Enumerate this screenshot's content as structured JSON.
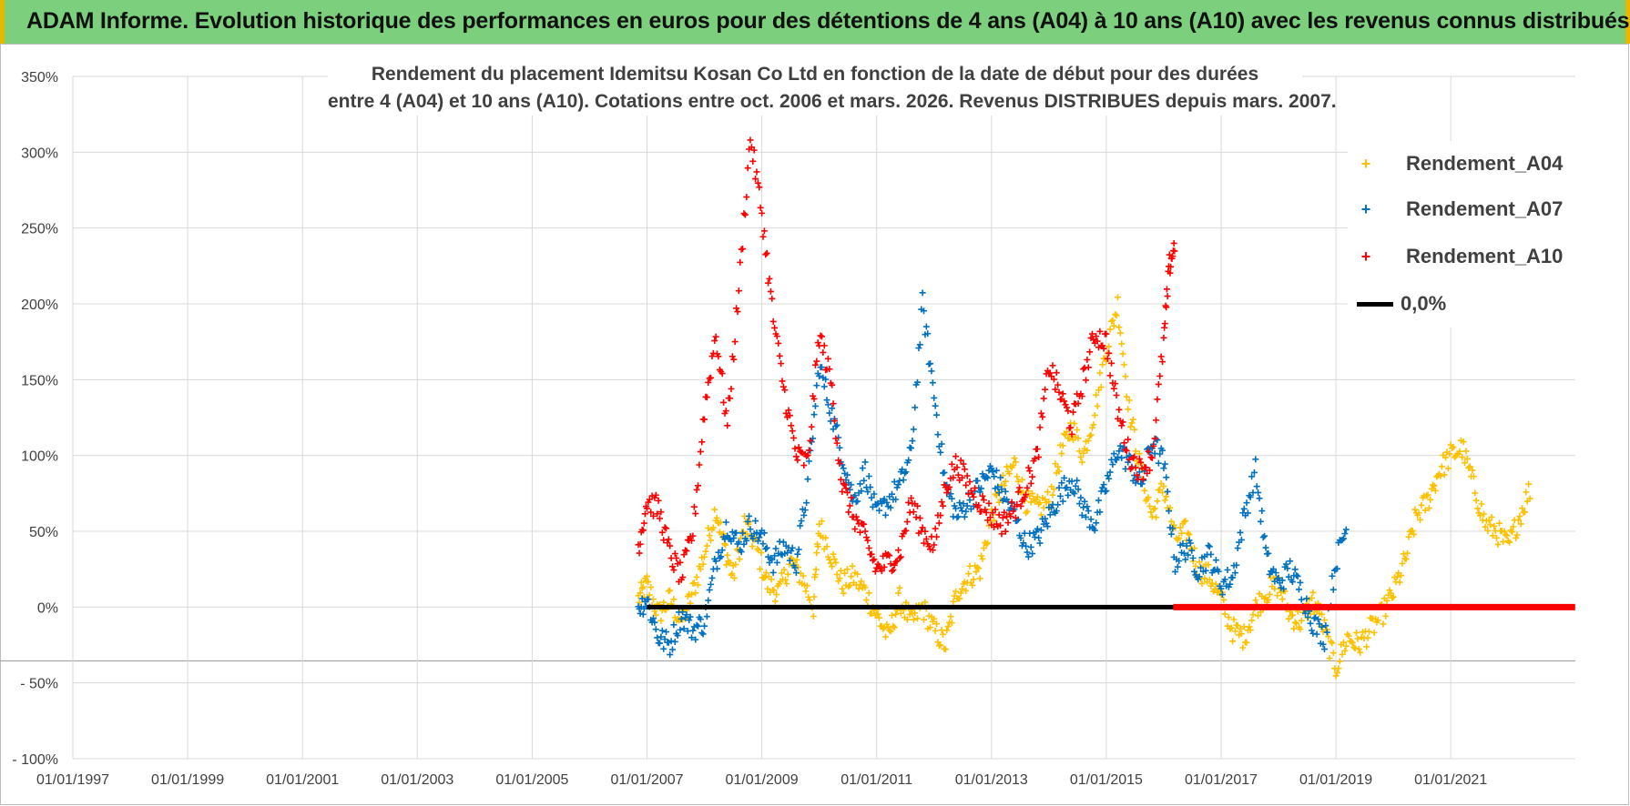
{
  "banner": {
    "title": "ADAM Informe. Evolution historique des performances en euros pour des détentions de 4 ans (A04) à 10 ans (A10) avec les revenus connus distribués"
  },
  "colors": {
    "banner_bg": "#7ccf7c",
    "banner_border": "#e6b800",
    "A04": "#ffc000",
    "A07": "#0070c0",
    "A10": "#ff0000",
    "zero_line": "#000000"
  },
  "chart_data": {
    "type": "scatter",
    "title_line1": "Rendement du placement Idemitsu Kosan Co Ltd en fonction de la date de début pour des durées",
    "title_line2": "entre 4 (A04) et 10 ans (A10).  Cotations entre oct. 2006 et mars. 2026. Revenus DISTRIBUES depuis mars. 2007.",
    "xlabel": "",
    "ylabel": "",
    "xlim": [
      "1997-01-01",
      "2023-03-01"
    ],
    "ylim": [
      -100,
      350
    ],
    "grid": true,
    "legend_position": "top-right",
    "x_ticks": [
      "01/01/1997",
      "01/01/1999",
      "01/01/2001",
      "01/01/2003",
      "01/01/2005",
      "01/01/2007",
      "01/01/2009",
      "01/01/2011",
      "01/01/2013",
      "01/01/2015",
      "01/01/2017",
      "01/01/2019",
      "01/01/2021"
    ],
    "y_ticks": [
      "350%",
      "300%",
      "250%",
      "200%",
      "150%",
      "100%",
      "50%",
      "0%",
      "- 50%",
      "- 100%"
    ],
    "y_tick_values": [
      350,
      300,
      250,
      200,
      150,
      100,
      50,
      0,
      -50,
      -100
    ],
    "series": [
      {
        "name": "Rendement_A04",
        "marker": "+",
        "x": [
          2006.85,
          2007.0,
          2007.2,
          2007.4,
          2007.6,
          2007.8,
          2008.0,
          2008.2,
          2008.35,
          2008.5,
          2008.7,
          2008.9,
          2009.1,
          2009.3,
          2009.5,
          2009.7,
          2009.9,
          2010.0,
          2010.2,
          2010.4,
          2010.6,
          2010.8,
          2011.0,
          2011.2,
          2011.4,
          2011.6,
          2011.8,
          2012.0,
          2012.2,
          2012.4,
          2012.6,
          2012.8,
          2013.0,
          2013.2,
          2013.4,
          2013.6,
          2013.8,
          2014.0,
          2014.2,
          2014.4,
          2014.6,
          2014.8,
          2015.0,
          2015.2,
          2015.4,
          2015.6,
          2015.8,
          2016.0,
          2016.2,
          2016.4,
          2016.6,
          2016.8,
          2017.0,
          2017.2,
          2017.4,
          2017.6,
          2017.8,
          2018.0,
          2018.2,
          2018.4,
          2018.6,
          2018.8,
          2019.0,
          2019.2,
          2019.4,
          2019.6,
          2019.8,
          2020.0,
          2020.2,
          2020.4,
          2020.6,
          2020.8,
          2021.0,
          2021.2,
          2021.4,
          2021.6,
          2021.8,
          2022.0,
          2022.2,
          2022.4
        ],
        "values": [
          5,
          15,
          -5,
          5,
          -10,
          10,
          35,
          65,
          40,
          20,
          55,
          40,
          15,
          10,
          30,
          20,
          0,
          55,
          35,
          15,
          20,
          10,
          -5,
          -20,
          5,
          -10,
          0,
          -15,
          -25,
          10,
          20,
          25,
          60,
          80,
          95,
          70,
          65,
          70,
          100,
          120,
          100,
          130,
          170,
          200,
          130,
          90,
          60,
          80,
          45,
          50,
          25,
          20,
          5,
          -15,
          -20,
          0,
          10,
          15,
          -5,
          -10,
          5,
          -15,
          -40,
          -20,
          -25,
          -15,
          -5,
          10,
          30,
          60,
          70,
          90,
          100,
          105,
          80,
          55,
          50,
          40,
          60,
          80
        ]
      },
      {
        "name": "Rendement_A07",
        "marker": "+",
        "x": [
          2006.85,
          2007.0,
          2007.2,
          2007.4,
          2007.6,
          2007.8,
          2008.0,
          2008.2,
          2008.4,
          2008.6,
          2008.8,
          2009.0,
          2009.2,
          2009.4,
          2009.6,
          2009.8,
          2010.0,
          2010.2,
          2010.4,
          2010.6,
          2010.8,
          2011.0,
          2011.2,
          2011.4,
          2011.6,
          2011.8,
          2012.0,
          2012.2,
          2012.4,
          2012.6,
          2012.8,
          2013.0,
          2013.2,
          2013.4,
          2013.6,
          2013.8,
          2014.0,
          2014.2,
          2014.4,
          2014.6,
          2014.8,
          2015.0,
          2015.2,
          2015.4,
          2015.6,
          2015.8,
          2016.0,
          2016.2,
          2016.4,
          2016.6,
          2016.8,
          2017.0,
          2017.2,
          2017.4,
          2017.6,
          2017.8,
          2018.0,
          2018.2,
          2018.4,
          2018.6,
          2018.8,
          2019.0,
          2019.2
        ],
        "values": [
          0,
          5,
          -20,
          -25,
          -5,
          -15,
          -10,
          30,
          55,
          40,
          55,
          45,
          30,
          40,
          30,
          80,
          160,
          130,
          100,
          70,
          90,
          60,
          70,
          80,
          100,
          200,
          140,
          80,
          60,
          70,
          80,
          90,
          75,
          60,
          40,
          45,
          60,
          75,
          85,
          65,
          55,
          80,
          105,
          95,
          80,
          110,
          95,
          30,
          40,
          25,
          35,
          15,
          20,
          60,
          90,
          30,
          15,
          25,
          10,
          -10,
          -20,
          30,
          55
        ]
      },
      {
        "name": "Rendement_A10",
        "marker": "+",
        "x": [
          2006.85,
          2007.0,
          2007.2,
          2007.4,
          2007.6,
          2007.8,
          2008.0,
          2008.2,
          2008.4,
          2008.6,
          2008.8,
          2009.0,
          2009.2,
          2009.4,
          2009.6,
          2009.8,
          2010.0,
          2010.2,
          2010.4,
          2010.6,
          2010.8,
          2011.0,
          2011.2,
          2011.4,
          2011.6,
          2011.8,
          2012.0,
          2012.2,
          2012.4,
          2012.6,
          2012.8,
          2013.0,
          2013.2,
          2013.4,
          2013.6,
          2013.8,
          2014.0,
          2014.2,
          2014.4,
          2014.6,
          2014.8,
          2015.0,
          2015.2,
          2015.4,
          2015.6,
          2015.8,
          2016.0,
          2016.1,
          2016.2
        ],
        "values": [
          40,
          70,
          65,
          35,
          20,
          50,
          130,
          180,
          120,
          210,
          310,
          260,
          190,
          140,
          100,
          95,
          180,
          150,
          80,
          60,
          45,
          25,
          30,
          35,
          70,
          50,
          40,
          80,
          95,
          80,
          70,
          60,
          55,
          65,
          80,
          100,
          160,
          140,
          120,
          150,
          180,
          175,
          130,
          100,
          90,
          100,
          175,
          225,
          240
        ]
      }
    ],
    "reference_line": {
      "name": "0,0%",
      "value": 0,
      "black_from": "2007-01-01",
      "black_to": "2016-03-01",
      "red_from": "2016-03-01",
      "red_to": "2023-03-01"
    },
    "legend": [
      "Rendement_A04",
      "Rendement_A07",
      "Rendement_A10",
      "0,0%"
    ]
  }
}
